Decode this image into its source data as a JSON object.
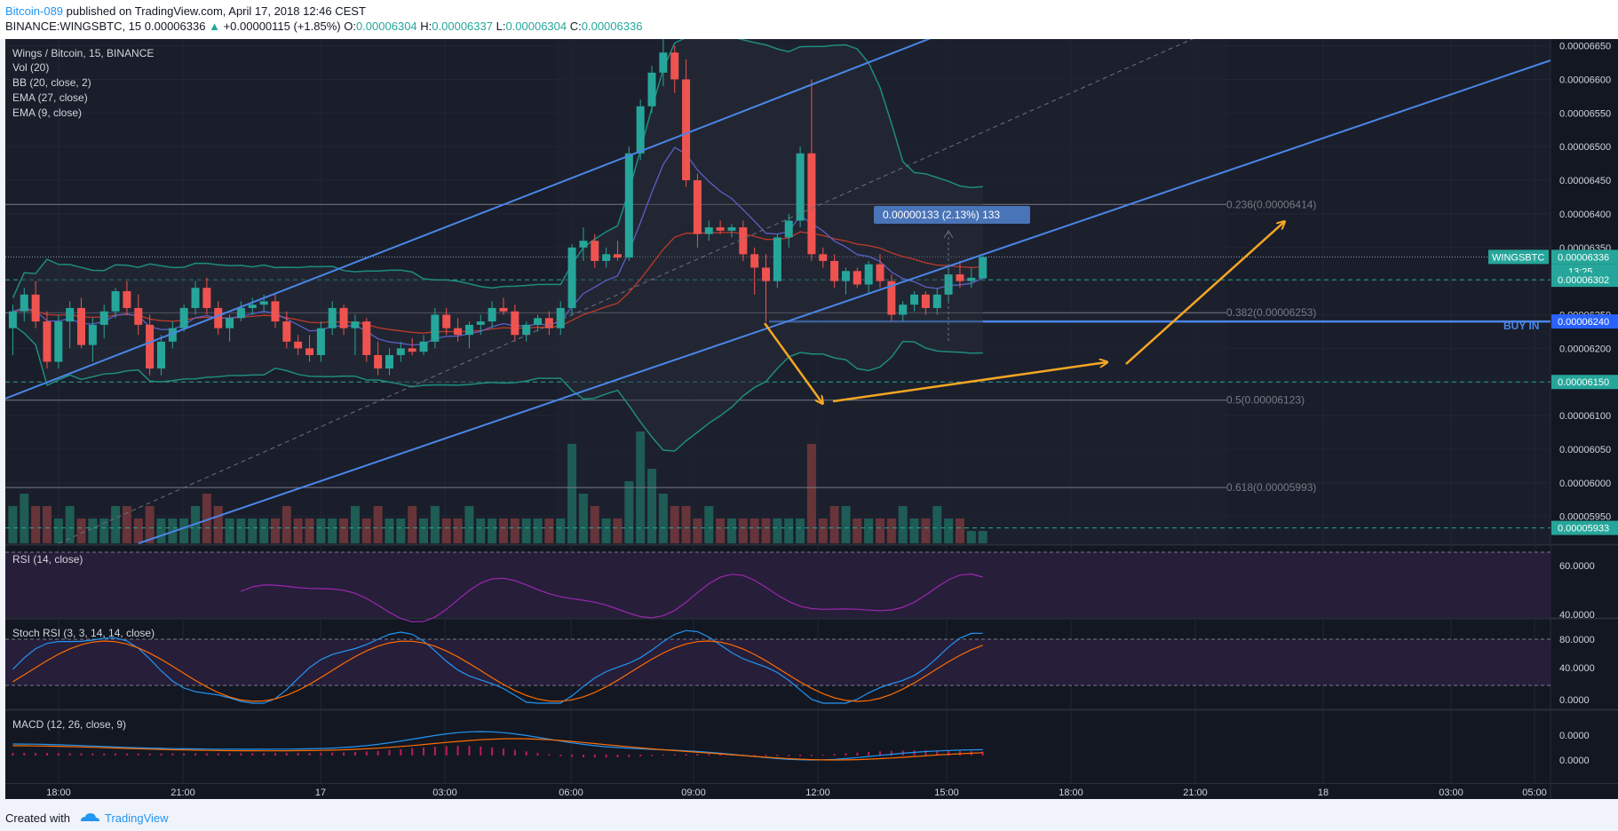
{
  "header": {
    "author": "Bitcoin-089",
    "published_text": "published on TradingView.com, April 17, 2018 12:46 CEST",
    "symbol_line": "BINANCE:WINGSBTC, 15",
    "last_price": "0.00006336",
    "change_arrow": "▲",
    "change": "+0.00000115 (+1.85%)",
    "o_label": "O:",
    "o_value": "0.00006304",
    "h_label": "H:",
    "h_value": "0.00006337",
    "l_label": "L:",
    "l_value": "0.00006304",
    "c_label": "C:",
    "c_value": "0.00006336"
  },
  "legend": {
    "title": "Wings / Bitcoin, 15, BINANCE",
    "indicators": [
      "Vol (20)",
      "BB (20, close, 2)",
      "EMA (27, close)",
      "EMA (9, close)"
    ]
  },
  "price_axis": {
    "ticks": [
      "0.00006650",
      "0.00006600",
      "0.00006550",
      "0.00006500",
      "0.00006450",
      "0.00006400",
      "0.00006350",
      "0.00006300",
      "0.00006250",
      "0.00006200",
      "0.00006150",
      "0.00006100",
      "0.00006050",
      "0.00006000",
      "0.00005950"
    ],
    "labels": [
      {
        "text": "WINGSBTC",
        "value": "0.00006336",
        "color": "#26a69a"
      },
      {
        "text": "",
        "value": "13:25",
        "color": "#26a69a"
      },
      {
        "text": "",
        "value": "0.00006302",
        "color": "#26a69a"
      },
      {
        "text": "",
        "value": "0.00006240",
        "color": "#2962ff"
      },
      {
        "text": "",
        "value": "0.00006150",
        "color": "#26a69a"
      },
      {
        "text": "",
        "value": "0.00005933",
        "color": "#26a69a"
      }
    ]
  },
  "time_axis": {
    "labels": [
      "18:00",
      "21:00",
      "17",
      "03:00",
      "06:00",
      "09:00",
      "12:00",
      "15:00",
      "18:00",
      "21:00",
      "18",
      "03:00",
      "05:00"
    ]
  },
  "annotations": {
    "measure": "0.00000133 (2.13%) 133",
    "buy_in": "BUY IN",
    "fib_236": "0.236(0.00006414)",
    "fib_382": "0.382(0.00006253)",
    "fib_05": "0.5(0.00006123)",
    "fib_618": "0.618(0.00005993)"
  },
  "panes": {
    "rsi": {
      "label": "RSI (14, close)",
      "ticks": [
        "60.0000",
        "40.0000"
      ]
    },
    "stoch": {
      "label": "Stoch RSI (3, 3, 14, 14, close)",
      "ticks": [
        "80.0000",
        "40.0000",
        "0.0000"
      ]
    },
    "macd": {
      "label": "MACD (12, 26, close, 9)",
      "ticks": [
        "0.0000",
        "0.0000"
      ]
    }
  },
  "footer": {
    "created": "Created with",
    "brand": "TradingView"
  },
  "colors": {
    "background": "#131722",
    "up": "#26a69a",
    "down": "#ef5350",
    "trend": "#4a86e8",
    "arrow": "#f5a623",
    "bb": "#1e8c7e",
    "ema27": "#c0392b",
    "ema9": "#5b5fc7",
    "rsi": "#9c27b0"
  },
  "chart_data": {
    "type": "candlestick",
    "title": "Wings / Bitcoin, 15, BINANCE",
    "ylim": [
      5.91e-05,
      6.66e-05
    ],
    "candles": [
      [
        6.23e-05,
        6.265e-05,
        6.19e-05,
        6.255e-05
      ],
      [
        6.255e-05,
        6.29e-05,
        6.24e-05,
        6.28e-05
      ],
      [
        6.28e-05,
        6.3e-05,
        6.23e-05,
        6.24e-05
      ],
      [
        6.24e-05,
        6.255e-05,
        6.17e-05,
        6.18e-05
      ],
      [
        6.18e-05,
        6.25e-05,
        6.17e-05,
        6.24e-05
      ],
      [
        6.24e-05,
        6.27e-05,
        6.2e-05,
        6.26e-05
      ],
      [
        6.26e-05,
        6.275e-05,
        6.2e-05,
        6.205e-05
      ],
      [
        6.205e-05,
        6.245e-05,
        6.18e-05,
        6.235e-05
      ],
      [
        6.235e-05,
        6.265e-05,
        6.215e-05,
        6.255e-05
      ],
      [
        6.255e-05,
        6.29e-05,
        6.245e-05,
        6.285e-05
      ],
      [
        6.285e-05,
        6.3e-05,
        6.25e-05,
        6.26e-05
      ],
      [
        6.26e-05,
        6.28e-05,
        6.22e-05,
        6.235e-05
      ],
      [
        6.235e-05,
        6.25e-05,
        6.16e-05,
        6.17e-05
      ],
      [
        6.17e-05,
        6.22e-05,
        6.16e-05,
        6.21e-05
      ],
      [
        6.21e-05,
        6.24e-05,
        6.2e-05,
        6.23e-05
      ],
      [
        6.23e-05,
        6.265e-05,
        6.225e-05,
        6.26e-05
      ],
      [
        6.26e-05,
        6.3e-05,
        6.25e-05,
        6.29e-05
      ],
      [
        6.29e-05,
        6.305e-05,
        6.25e-05,
        6.26e-05
      ],
      [
        6.26e-05,
        6.27e-05,
        6.22e-05,
        6.23e-05
      ],
      [
        6.23e-05,
        6.25e-05,
        6.21e-05,
        6.245e-05
      ],
      [
        6.245e-05,
        6.27e-05,
        6.24e-05,
        6.26e-05
      ],
      [
        6.26e-05,
        6.275e-05,
        6.25e-05,
        6.265e-05
      ],
      [
        6.265e-05,
        6.28e-05,
        6.255e-05,
        6.27e-05
      ],
      [
        6.27e-05,
        6.28e-05,
        6.23e-05,
        6.24e-05
      ],
      [
        6.24e-05,
        6.255e-05,
        6.2e-05,
        6.21e-05
      ],
      [
        6.21e-05,
        6.22e-05,
        6.19e-05,
        6.2e-05
      ],
      [
        6.2e-05,
        6.22e-05,
        6.18e-05,
        6.19e-05
      ],
      [
        6.19e-05,
        6.24e-05,
        6.18e-05,
        6.23e-05
      ],
      [
        6.23e-05,
        6.27e-05,
        6.22e-05,
        6.26e-05
      ],
      [
        6.26e-05,
        6.265e-05,
        6.22e-05,
        6.23e-05
      ],
      [
        6.23e-05,
        6.25e-05,
        6.19e-05,
        6.24e-05
      ],
      [
        6.24e-05,
        6.245e-05,
        6.18e-05,
        6.19e-05
      ],
      [
        6.19e-05,
        6.21e-05,
        6.16e-05,
        6.17e-05
      ],
      [
        6.17e-05,
        6.2e-05,
        6.16e-05,
        6.19e-05
      ],
      [
        6.19e-05,
        6.21e-05,
        6.18e-05,
        6.2e-05
      ],
      [
        6.2e-05,
        6.215e-05,
        6.19e-05,
        6.195e-05
      ],
      [
        6.195e-05,
        6.22e-05,
        6.19e-05,
        6.21e-05
      ],
      [
        6.21e-05,
        6.26e-05,
        6.2e-05,
        6.25e-05
      ],
      [
        6.25e-05,
        6.26e-05,
        6.22e-05,
        6.23e-05
      ],
      [
        6.23e-05,
        6.245e-05,
        6.21e-05,
        6.22e-05
      ],
      [
        6.22e-05,
        6.24e-05,
        6.2e-05,
        6.235e-05
      ],
      [
        6.235e-05,
        6.25e-05,
        6.22e-05,
        6.24e-05
      ],
      [
        6.24e-05,
        6.27e-05,
        6.23e-05,
        6.26e-05
      ],
      [
        6.26e-05,
        6.275e-05,
        6.25e-05,
        6.255e-05
      ],
      [
        6.255e-05,
        6.265e-05,
        6.21e-05,
        6.22e-05
      ],
      [
        6.22e-05,
        6.24e-05,
        6.21e-05,
        6.235e-05
      ],
      [
        6.235e-05,
        6.25e-05,
        6.225e-05,
        6.245e-05
      ],
      [
        6.245e-05,
        6.255e-05,
        6.22e-05,
        6.23e-05
      ],
      [
        6.23e-05,
        6.27e-05,
        6.22e-05,
        6.26e-05
      ],
      [
        6.26e-05,
        6.355e-05,
        6.25e-05,
        6.35e-05
      ],
      [
        6.35e-05,
        6.38e-05,
        6.33e-05,
        6.36e-05
      ],
      [
        6.36e-05,
        6.37e-05,
        6.32e-05,
        6.33e-05
      ],
      [
        6.33e-05,
        6.35e-05,
        6.32e-05,
        6.34e-05
      ],
      [
        6.34e-05,
        6.36e-05,
        6.33e-05,
        6.335e-05
      ],
      [
        6.335e-05,
        6.5e-05,
        6.33e-05,
        6.49e-05
      ],
      [
        6.49e-05,
        6.57e-05,
        6.48e-05,
        6.56e-05
      ],
      [
        6.56e-05,
        6.62e-05,
        6.55e-05,
        6.61e-05
      ],
      [
        6.61e-05,
        6.66e-05,
        6.59e-05,
        6.64e-05
      ],
      [
        6.64e-05,
        6.65e-05,
        6.58e-05,
        6.6e-05
      ],
      [
        6.6e-05,
        6.63e-05,
        6.44e-05,
        6.45e-05
      ],
      [
        6.45e-05,
        6.46e-05,
        6.35e-05,
        6.37e-05
      ],
      [
        6.37e-05,
        6.39e-05,
        6.36e-05,
        6.38e-05
      ],
      [
        6.38e-05,
        6.39e-05,
        6.37e-05,
        6.375e-05
      ],
      [
        6.375e-05,
        6.385e-05,
        6.365e-05,
        6.38e-05
      ],
      [
        6.38e-05,
        6.39e-05,
        6.33e-05,
        6.34e-05
      ],
      [
        6.34e-05,
        6.35e-05,
        6.28e-05,
        6.32e-05
      ],
      [
        6.32e-05,
        6.34e-05,
        6.24e-05,
        6.3e-05
      ],
      [
        6.3e-05,
        6.37e-05,
        6.29e-05,
        6.365e-05
      ],
      [
        6.365e-05,
        6.4e-05,
        6.35e-05,
        6.39e-05
      ],
      [
        6.39e-05,
        6.5e-05,
        6.38e-05,
        6.49e-05
      ],
      [
        6.49e-05,
        6.6e-05,
        6.33e-05,
        6.34e-05
      ],
      [
        6.34e-05,
        6.35e-05,
        6.32e-05,
        6.33e-05
      ],
      [
        6.33e-05,
        6.34e-05,
        6.29e-05,
        6.3e-05
      ],
      [
        6.3e-05,
        6.32e-05,
        6.28e-05,
        6.315e-05
      ],
      [
        6.315e-05,
        6.32e-05,
        6.29e-05,
        6.295e-05
      ],
      [
        6.295e-05,
        6.33e-05,
        6.28e-05,
        6.325e-05
      ],
      [
        6.325e-05,
        6.34e-05,
        6.29e-05,
        6.3e-05
      ],
      [
        6.3e-05,
        6.31e-05,
        6.24e-05,
        6.25e-05
      ],
      [
        6.25e-05,
        6.27e-05,
        6.24e-05,
        6.265e-05
      ],
      [
        6.265e-05,
        6.285e-05,
        6.255e-05,
        6.28e-05
      ],
      [
        6.28e-05,
        6.285e-05,
        6.25e-05,
        6.26e-05
      ],
      [
        6.26e-05,
        6.29e-05,
        6.25e-05,
        6.28e-05
      ],
      [
        6.28e-05,
        6.32e-05,
        6.27e-05,
        6.31e-05
      ],
      [
        6.31e-05,
        6.33e-05,
        6.29e-05,
        6.3e-05
      ],
      [
        6.3e-05,
        6.32e-05,
        6.29e-05,
        6.305e-05
      ],
      [
        6.304e-05,
        6.337e-05,
        6.304e-05,
        6.336e-05
      ]
    ],
    "volumes": [
      3,
      4,
      3,
      3,
      2,
      3,
      2,
      2,
      2,
      3,
      3,
      2,
      3,
      2,
      2,
      2,
      3,
      4,
      3,
      2,
      2,
      2,
      2,
      2,
      3,
      2,
      2,
      2,
      2,
      2,
      3,
      2,
      3,
      2,
      2,
      3,
      2,
      3,
      2,
      2,
      3,
      2,
      2,
      2,
      2,
      2,
      2,
      2,
      2,
      8,
      4,
      3,
      2,
      2,
      5,
      9,
      6,
      4,
      3,
      3,
      2,
      3,
      2,
      2,
      2,
      2,
      2,
      2,
      2,
      2,
      8,
      2,
      3,
      3,
      2,
      2,
      2,
      2,
      3,
      2,
      2,
      3,
      2,
      2,
      1,
      1
    ],
    "fib_levels": [
      {
        "ratio": 0.236,
        "value": 6.414e-05
      },
      {
        "ratio": 0.382,
        "value": 6.253e-05
      },
      {
        "ratio": 0.5,
        "value": 6.123e-05
      },
      {
        "ratio": 0.618,
        "value": 5.993e-05
      }
    ],
    "horizontal_levels": [
      6.336e-05,
      6.302e-05,
      6.24e-05,
      6.15e-05,
      5.933e-05
    ]
  }
}
